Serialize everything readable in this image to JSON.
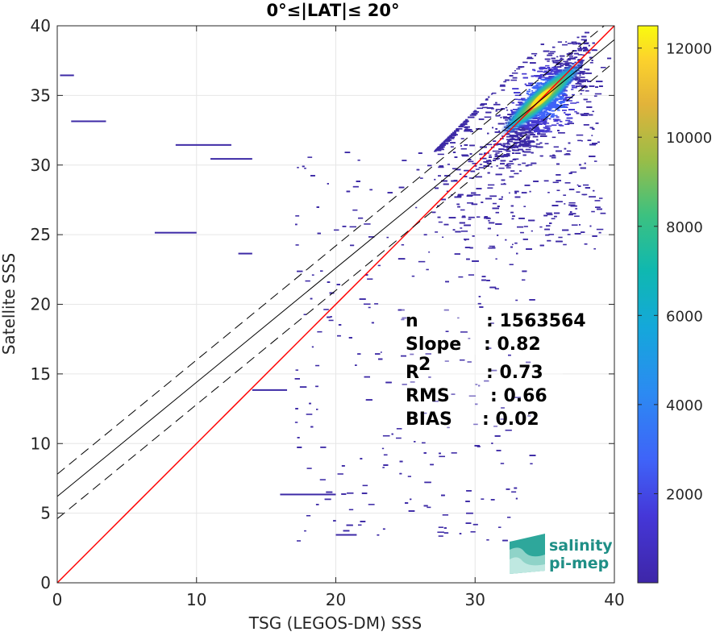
{
  "chart_data": {
    "type": "heatmap",
    "title": "0°≤|LAT|≤ 20°",
    "xlabel": "TSG (LEGOS-DM) SSS",
    "ylabel": "Satellite SSS",
    "xlim": [
      0,
      40
    ],
    "ylim": [
      0,
      40
    ],
    "xticks": [
      "0",
      "10",
      "20",
      "30",
      "40"
    ],
    "yticks": [
      "0",
      "5",
      "10",
      "15",
      "20",
      "25",
      "30",
      "35",
      "40"
    ],
    "grid": true,
    "colorbar": {
      "range": [
        0,
        12500
      ],
      "ticks": [
        "2000",
        "4000",
        "6000",
        "8000",
        "10000",
        "12000"
      ]
    },
    "lines": [
      {
        "name": "one-to-one",
        "color": "#ff0000",
        "dash": "solid",
        "points": [
          [
            0,
            0
          ],
          [
            40,
            40
          ]
        ]
      },
      {
        "name": "regression",
        "color": "#000000",
        "dash": "solid",
        "points": [
          [
            0,
            6.2
          ],
          [
            40,
            39.0
          ]
        ]
      },
      {
        "name": "regression-upper",
        "color": "#000000",
        "dash": "dashed",
        "points": [
          [
            0,
            7.8
          ],
          [
            40,
            40.6
          ]
        ]
      },
      {
        "name": "regression-lower",
        "color": "#000000",
        "dash": "dashed",
        "points": [
          [
            0,
            4.6
          ],
          [
            40,
            37.4
          ]
        ]
      }
    ],
    "density_peak": {
      "x": 34.8,
      "y": 34.8,
      "count": 12500
    },
    "stats": [
      {
        "label": "n",
        "value": ": 1563564"
      },
      {
        "label": "Slope",
        "value": ": 0.82"
      },
      {
        "label": "R",
        "sup": "2",
        "value": ": 0.73"
      },
      {
        "label": "RMS",
        "value": ": 0.66"
      },
      {
        "label": "BIAS",
        "value": ": 0.02"
      }
    ]
  },
  "logo": {
    "line1": "salinity",
    "line2": "pi-mep"
  },
  "colors": {
    "one_to_one": "#ff0000",
    "low_density": "#3d2aa6",
    "mid_density": "#21b0a8",
    "high_density": "#f9e21d"
  }
}
